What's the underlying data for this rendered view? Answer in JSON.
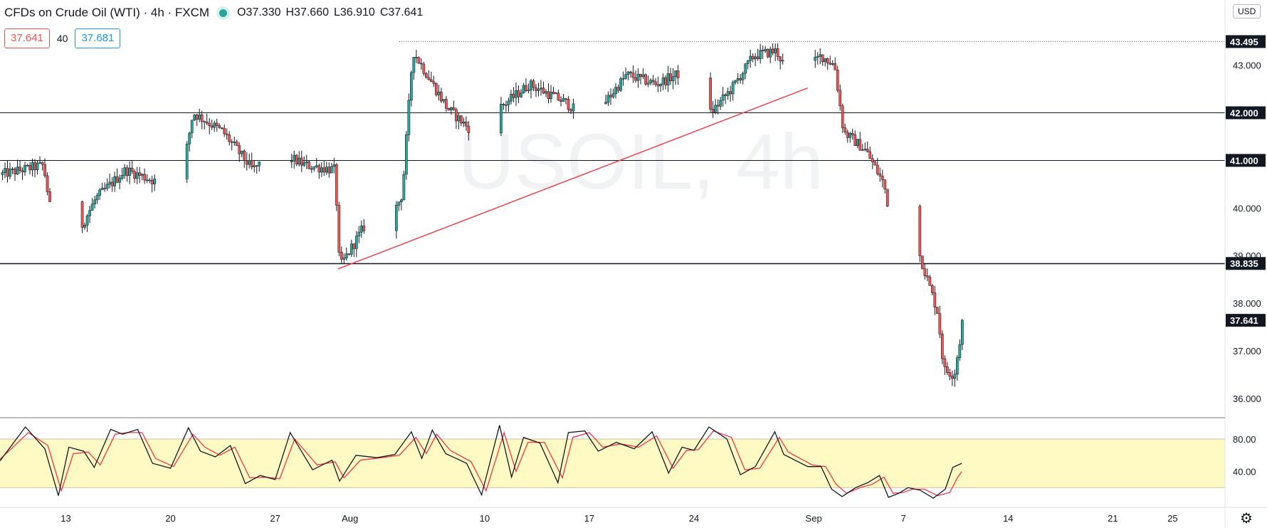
{
  "header": {
    "title": "CFDs on Crude Oil (WTI) · 4h · FXCM",
    "ohlc": [
      {
        "k": "O",
        "v": "37.330"
      },
      {
        "k": "H",
        "v": "37.660"
      },
      {
        "k": "L",
        "v": "36.910"
      },
      {
        "k": "C",
        "v": "37.641"
      }
    ],
    "bid": "37.641",
    "spread": "40",
    "ask": "37.681",
    "currency": "USD"
  },
  "chart_data": {
    "type": "candlestick",
    "watermark": "USOIL, 4h",
    "price_axis": {
      "ticks": [
        "43.000",
        "42.000",
        "41.000",
        "40.000",
        "39.000",
        "38.000",
        "37.000",
        "36.000"
      ],
      "tick_values": [
        43,
        42,
        41,
        40,
        39,
        38,
        37,
        36
      ],
      "range": [
        35.7,
        43.95
      ]
    },
    "time_axis": {
      "labels": [
        "13",
        "20",
        "27",
        "Aug",
        "10",
        "17",
        "24",
        "Sep",
        "7",
        "14",
        "21",
        "25"
      ],
      "label_days": [
        13,
        20,
        27,
        32,
        41,
        48,
        55,
        63,
        69,
        76,
        83,
        87
      ],
      "range_days": [
        8.6,
        90.5
      ]
    },
    "levels": [
      {
        "value": 43.495,
        "label": "43.495",
        "style": "dotted"
      },
      {
        "value": 42.0,
        "label": "42.000",
        "style": "solid"
      },
      {
        "value": 41.0,
        "label": "41.000",
        "style": "solid"
      },
      {
        "value": 38.835,
        "label": "38.835",
        "style": "solid"
      }
    ],
    "last_price": {
      "value": 37.641,
      "label": "37.641"
    },
    "trendline": {
      "from": {
        "day": 31.2,
        "price": 38.72
      },
      "to": {
        "day": 62.6,
        "price": 42.52
      },
      "color": "#f23645"
    },
    "path_days": [
      8.6,
      11.5,
      12.2,
      12.8,
      15.0,
      17.0,
      19.5,
      20.5,
      21.5,
      23.5,
      25.5,
      27.0,
      29.0,
      31.0,
      31.3,
      33.5,
      34.5,
      35.5,
      36.2,
      38.5,
      40.2,
      42.0,
      44.0,
      46.5,
      48.0,
      50.5,
      52.5,
      54.5,
      55.3,
      57.5,
      59.0,
      60.5,
      61.2,
      62.0,
      63.5,
      64.4,
      65.0,
      66.5,
      67.7,
      68.5,
      69.0,
      70.0,
      71.3,
      71.7,
      72.4,
      73.0
    ],
    "path_prices": [
      40.7,
      40.9,
      39.5,
      38.85,
      40.2,
      40.8,
      40.5,
      40.2,
      42.0,
      41.6,
      40.8,
      41.2,
      40.9,
      40.8,
      38.75,
      39.9,
      39.6,
      40.3,
      43.3,
      42.1,
      41.6,
      42.1,
      42.6,
      42.2,
      41.8,
      42.8,
      42.6,
      42.9,
      41.7,
      42.5,
      43.2,
      43.3,
      42.9,
      42.75,
      43.2,
      43.0,
      41.6,
      41.2,
      40.5,
      39.2,
      39.0,
      39.1,
      37.8,
      36.6,
      36.5,
      37.64
    ],
    "oscillator": {
      "ticks": [
        "80.00",
        "40.00"
      ],
      "tick_values": [
        80,
        40
      ],
      "band": [
        20,
        80
      ],
      "range": [
        0,
        102
      ],
      "k_days": [
        8.6,
        10.3,
        11.6,
        12.5,
        13.2,
        14.2,
        14.9,
        16.0,
        16.8,
        17.8,
        18.8,
        20.0,
        21.2,
        22.0,
        23.0,
        24.0,
        25.0,
        26.0,
        27.0,
        28.0,
        29.5,
        30.8,
        31.3,
        32.4,
        33.8,
        35.0,
        36.1,
        36.8,
        37.5,
        38.4,
        39.8,
        40.8,
        42.0,
        42.8,
        43.6,
        44.7,
        45.9,
        46.6,
        47.7,
        48.6,
        49.8,
        51.0,
        52.2,
        53.3,
        54.2,
        55.0,
        56.0,
        57.2,
        58.1,
        59.1,
        60.4,
        61.0,
        62.6,
        63.5,
        64.2,
        64.9,
        65.8,
        66.6,
        67.4,
        68.0,
        68.7,
        69.3,
        70.1,
        71.0,
        71.8,
        72.3,
        72.9
      ],
      "k_values": [
        53,
        95,
        68,
        10,
        70,
        65,
        45,
        92,
        86,
        92,
        50,
        44,
        94,
        65,
        58,
        72,
        25,
        35,
        30,
        88,
        42,
        54,
        28,
        60,
        57,
        61,
        89,
        56,
        91,
        62,
        50,
        11,
        97,
        33,
        82,
        75,
        26,
        88,
        90,
        65,
        76,
        68,
        89,
        38,
        70,
        66,
        95,
        80,
        36,
        46,
        89,
        61,
        46,
        46,
        18,
        9,
        20,
        26,
        35,
        8,
        13,
        20,
        17,
        7,
        18,
        45,
        50
      ],
      "d_days": [
        8.6,
        10.5,
        11.8,
        12.7,
        13.5,
        14.5,
        15.3,
        16.3,
        17.1,
        18.1,
        19.0,
        20.2,
        21.5,
        22.3,
        23.3,
        24.3,
        25.3,
        26.3,
        27.3,
        28.3,
        29.8,
        31.0,
        31.6,
        32.7,
        34.1,
        35.3,
        36.4,
        37.1,
        37.8,
        38.7,
        40.1,
        41.1,
        42.3,
        43.1,
        43.9,
        45.0,
        46.2,
        46.9,
        48.0,
        48.9,
        50.1,
        51.3,
        52.5,
        53.6,
        54.5,
        55.3,
        56.3,
        57.5,
        58.4,
        59.4,
        60.7,
        61.3,
        62.9,
        63.8,
        64.5,
        65.2,
        66.1,
        66.9,
        67.7,
        68.3,
        69.0,
        69.6,
        70.4,
        71.3,
        72.1,
        72.6,
        72.9
      ],
      "d_values": [
        55,
        88,
        72,
        16,
        62,
        64,
        48,
        86,
        88,
        88,
        56,
        46,
        86,
        70,
        60,
        70,
        32,
        33,
        31,
        80,
        48,
        52,
        32,
        54,
        57,
        60,
        82,
        62,
        86,
        66,
        52,
        16,
        88,
        40,
        76,
        76,
        32,
        82,
        88,
        70,
        74,
        70,
        84,
        44,
        66,
        67,
        90,
        82,
        42,
        44,
        82,
        64,
        48,
        46,
        24,
        13,
        20,
        24,
        33,
        13,
        14,
        18,
        18,
        10,
        14,
        32,
        40
      ]
    }
  },
  "colors": {
    "up": "#26a69a",
    "down": "#ef5350",
    "stoch_k": "#131722",
    "stoch_d": "#f23645",
    "band": "#fff9c4"
  }
}
